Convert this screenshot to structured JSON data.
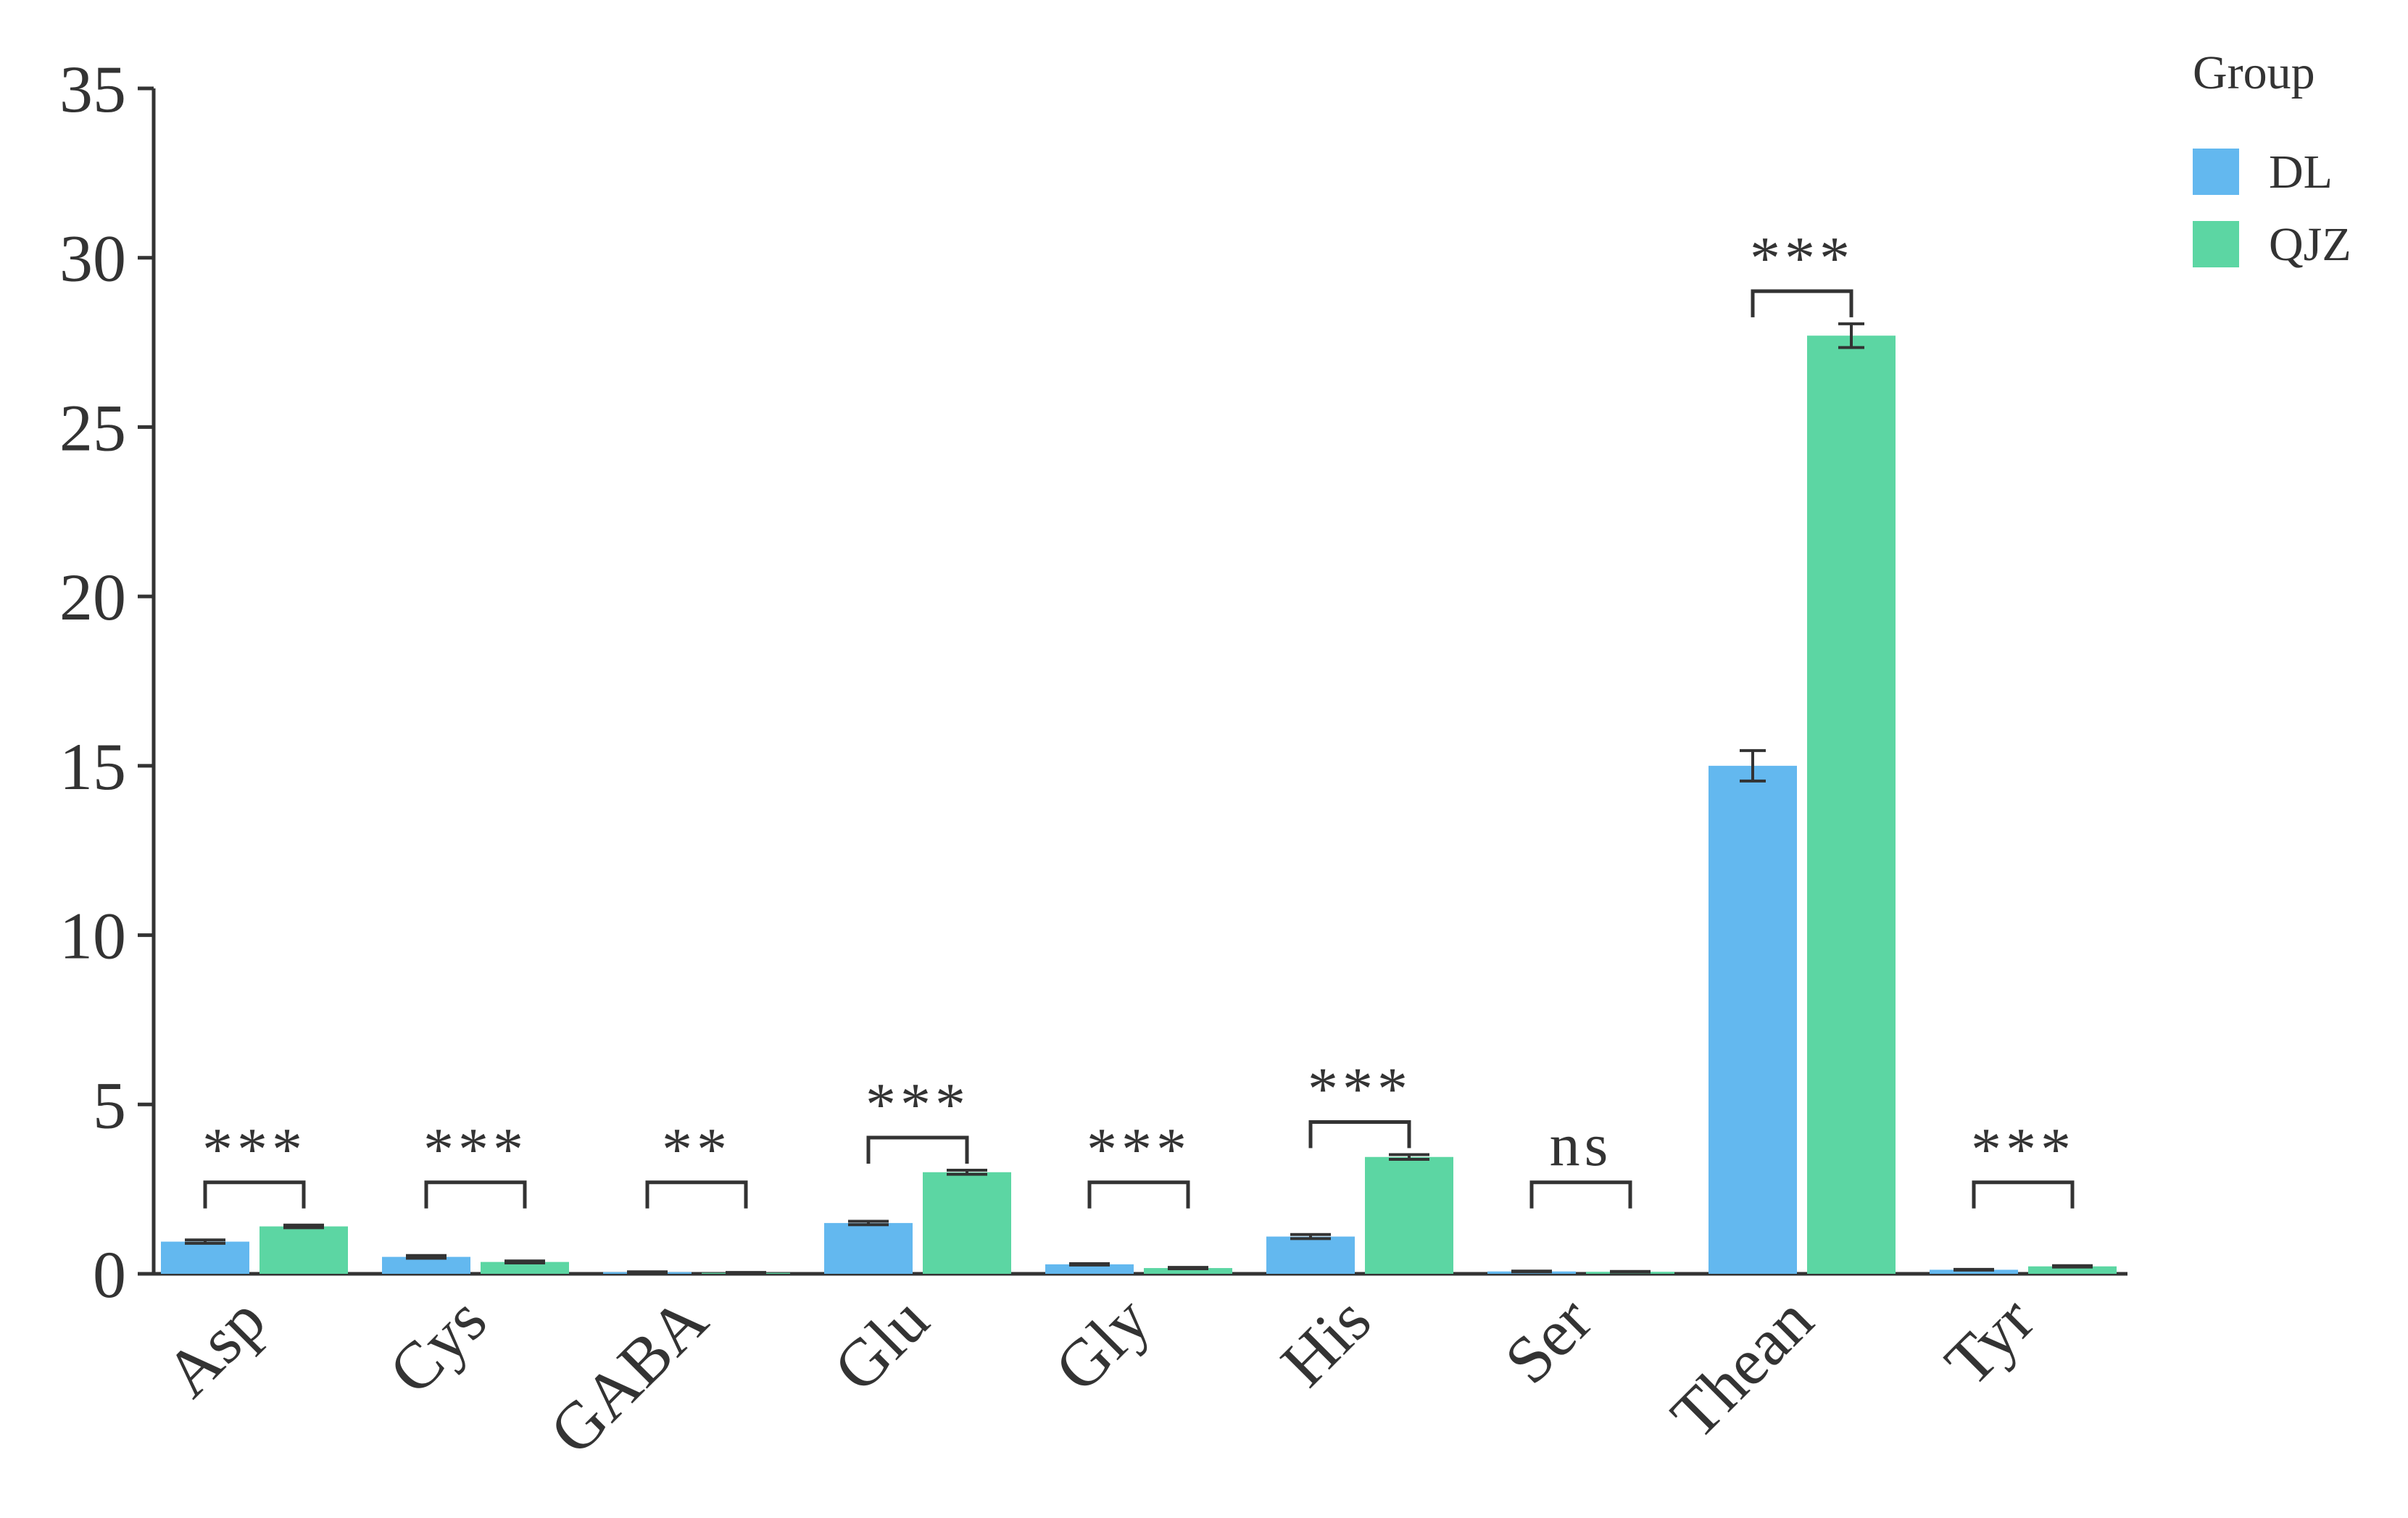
{
  "chart_data": {
    "type": "bar",
    "title": "",
    "xlabel": "",
    "ylabel": "",
    "ylim": [
      0,
      35
    ],
    "yticks": [
      0,
      5,
      10,
      15,
      20,
      25,
      30,
      35
    ],
    "categories": [
      "Asp",
      "Cys",
      "GABA",
      "Glu",
      "Gly",
      "His",
      "Ser",
      "Thean",
      "Tyr"
    ],
    "series": [
      {
        "name": "DL",
        "color": "#63b8ef",
        "values": [
          0.95,
          0.5,
          0.05,
          1.5,
          0.28,
          1.1,
          0.07,
          15.0,
          0.12
        ],
        "errors": [
          0.05,
          0.04,
          0.01,
          0.05,
          0.02,
          0.06,
          0.01,
          0.45,
          0.01
        ]
      },
      {
        "name": "QJZ",
        "color": "#5cd6a3",
        "values": [
          1.4,
          0.35,
          0.03,
          3.0,
          0.17,
          3.45,
          0.06,
          27.7,
          0.22
        ],
        "errors": [
          0.04,
          0.03,
          0.01,
          0.06,
          0.02,
          0.07,
          0.01,
          0.35,
          0.02
        ]
      }
    ],
    "significance": [
      "***",
      "***",
      "**",
      "***",
      "***",
      "***",
      "ns",
      "***",
      "***"
    ],
    "legend": {
      "title": "Group",
      "position": "top-right"
    },
    "grid": false
  }
}
